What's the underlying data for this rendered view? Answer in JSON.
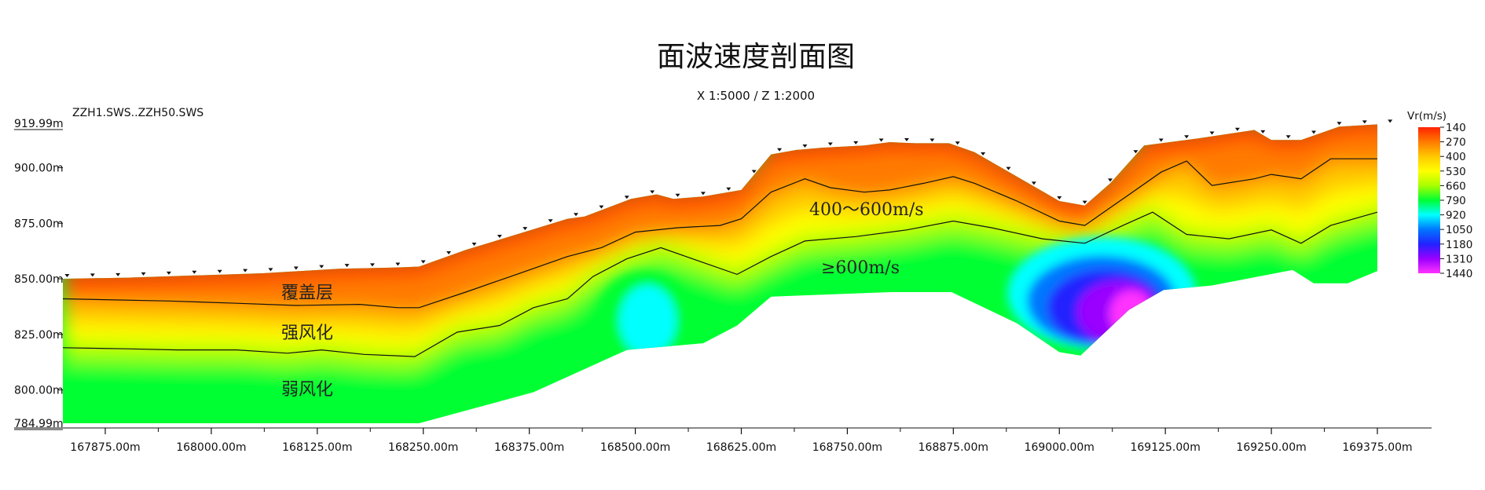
{
  "chart_data": {
    "type": "heatmap",
    "title": "面波速度剖面图",
    "subtitle": "X 1:5000 / Z 1:2000",
    "file_label": "ZZH1.SWS..ZZH50.SWS",
    "xlim": [
      167825,
      169400
    ],
    "ylim": [
      784.99,
      919.99
    ],
    "x_ticks": [
      167875,
      168000,
      168125,
      168250,
      168375,
      168500,
      168625,
      168750,
      168875,
      169000,
      169125,
      169250,
      169375
    ],
    "x_tick_labels": [
      "167875.00m",
      "168000.00m",
      "168125.00m",
      "168250.00m",
      "168375.00m",
      "168500.00m",
      "168625.00m",
      "168750.00m",
      "168875.00m",
      "169000.00m",
      "169125.00m",
      "169250.00m",
      "169375.00m"
    ],
    "y_ticks": [
      919.99,
      900,
      875,
      850,
      825,
      800,
      784.99
    ],
    "y_tick_labels": [
      "919.99m",
      "900.00m",
      "875.00m",
      "850.00m",
      "825.00m",
      "800.00m",
      "784.99m"
    ],
    "colorbar": {
      "label": "Vr(m/s)",
      "values": [
        140,
        270,
        400,
        530,
        660,
        790,
        920,
        1050,
        1180,
        1310,
        1440
      ],
      "labels": [
        "140",
        "270",
        "400",
        "530",
        "660",
        "790",
        "920",
        "1050",
        "1180",
        "1310",
        "1440"
      ],
      "colors": [
        "#ff2200",
        "#ff7a00",
        "#ffc800",
        "#ffff00",
        "#a8ff00",
        "#00ff33",
        "#00ffff",
        "#0077ff",
        "#2222ff",
        "#9900ff",
        "#ff33ff"
      ]
    },
    "surface": [
      [
        167825,
        850
      ],
      [
        167900,
        850.5
      ],
      [
        167980,
        851.5
      ],
      [
        168060,
        852.5
      ],
      [
        168150,
        854.5
      ],
      [
        168210,
        855
      ],
      [
        168245,
        855.5
      ],
      [
        168300,
        863
      ],
      [
        168360,
        870
      ],
      [
        168420,
        877
      ],
      [
        168440,
        878
      ],
      [
        168495,
        886
      ],
      [
        168525,
        888
      ],
      [
        168545,
        886
      ],
      [
        168580,
        887
      ],
      [
        168625,
        890
      ],
      [
        168660,
        906
      ],
      [
        168690,
        908
      ],
      [
        168720,
        909
      ],
      [
        168770,
        910
      ],
      [
        168800,
        911.5
      ],
      [
        168830,
        911
      ],
      [
        168870,
        911
      ],
      [
        168900,
        907
      ],
      [
        168950,
        896
      ],
      [
        169000,
        885
      ],
      [
        169030,
        883
      ],
      [
        169060,
        893
      ],
      [
        169100,
        910
      ],
      [
        169160,
        913
      ],
      [
        169230,
        917
      ],
      [
        169250,
        912.5
      ],
      [
        169285,
        912.5
      ],
      [
        169330,
        918.5
      ],
      [
        169375,
        919.5
      ]
    ],
    "bottom": [
      [
        167825,
        784.99
      ],
      [
        168245,
        785
      ],
      [
        168380,
        799
      ],
      [
        168490,
        818
      ],
      [
        168580,
        821
      ],
      [
        168620,
        829
      ],
      [
        168660,
        842
      ],
      [
        168800,
        844
      ],
      [
        168873,
        844
      ],
      [
        168950,
        830
      ],
      [
        169000,
        817
      ],
      [
        169025,
        815.5
      ],
      [
        169082,
        836
      ],
      [
        169123,
        845
      ],
      [
        169180,
        847
      ],
      [
        169275,
        854
      ],
      [
        169300,
        848
      ],
      [
        169340,
        848
      ],
      [
        169375,
        853.5
      ]
    ],
    "contour_400": [
      [
        167825,
        841
      ],
      [
        167950,
        840
      ],
      [
        168030,
        839
      ],
      [
        168100,
        838
      ],
      [
        168175,
        838.5
      ],
      [
        168220,
        837
      ],
      [
        168245,
        837
      ],
      [
        168300,
        844
      ],
      [
        168360,
        852
      ],
      [
        168420,
        860
      ],
      [
        168460,
        864
      ],
      [
        168500,
        871
      ],
      [
        168550,
        873
      ],
      [
        168600,
        874
      ],
      [
        168625,
        877
      ],
      [
        168660,
        889
      ],
      [
        168700,
        895
      ],
      [
        168730,
        891
      ],
      [
        168770,
        889
      ],
      [
        168800,
        890
      ],
      [
        168840,
        893
      ],
      [
        168875,
        896
      ],
      [
        168900,
        893
      ],
      [
        168950,
        885
      ],
      [
        169000,
        876
      ],
      [
        169030,
        874
      ],
      [
        169075,
        886
      ],
      [
        169120,
        898
      ],
      [
        169150,
        903
      ],
      [
        169180,
        892
      ],
      [
        169230,
        895
      ],
      [
        169250,
        897
      ],
      [
        169285,
        895
      ],
      [
        169320,
        904
      ],
      [
        169375,
        904
      ]
    ],
    "contour_600": [
      [
        167825,
        819
      ],
      [
        167900,
        818.5
      ],
      [
        167960,
        818
      ],
      [
        168030,
        818
      ],
      [
        168090,
        816.5
      ],
      [
        168130,
        818
      ],
      [
        168180,
        816
      ],
      [
        168240,
        815
      ],
      [
        168290,
        826
      ],
      [
        168340,
        829
      ],
      [
        168380,
        837
      ],
      [
        168420,
        841
      ],
      [
        168450,
        851
      ],
      [
        168490,
        859
      ],
      [
        168530,
        864
      ],
      [
        168575,
        858
      ],
      [
        168620,
        852
      ],
      [
        168660,
        860
      ],
      [
        168700,
        867
      ],
      [
        168760,
        869
      ],
      [
        168820,
        872
      ],
      [
        168875,
        876
      ],
      [
        168920,
        873
      ],
      [
        168980,
        868
      ],
      [
        169030,
        866
      ],
      [
        169075,
        874
      ],
      [
        169110,
        880
      ],
      [
        169150,
        870
      ],
      [
        169200,
        868
      ],
      [
        169250,
        872
      ],
      [
        169285,
        866
      ],
      [
        169320,
        874
      ],
      [
        169375,
        880
      ]
    ],
    "high_velocity_zones": [
      {
        "center": [
          169050,
          840
        ],
        "peak_velocity": 1440
      },
      {
        "center": [
          168510,
          833
        ],
        "peak_velocity": 1000
      }
    ],
    "annotations": [
      "400～600m/s",
      "≥600m/s",
      "覆盖层",
      "强风化",
      "弱风化"
    ]
  }
}
